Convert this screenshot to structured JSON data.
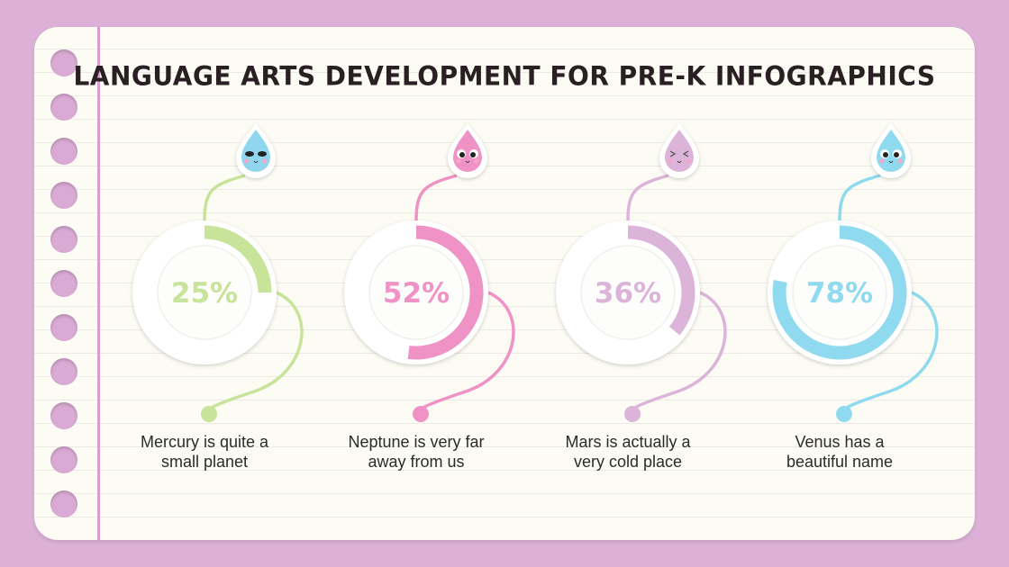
{
  "title": "LANGUAGE ARTS DEVELOPMENT FOR PRE-K INFOGRAPHICS",
  "items": [
    {
      "value": 25,
      "label": "25%",
      "caption_line1": "Mercury is quite a",
      "caption_line2": "small planet",
      "color": "#c8e49b",
      "drop_color": "#8fd6ee",
      "face": "sleepy"
    },
    {
      "value": 52,
      "label": "52%",
      "caption_line1": "Neptune is very far",
      "caption_line2": "away from us",
      "color": "#ef93c6",
      "drop_color": "#ef93c6",
      "face": "wide-eyes"
    },
    {
      "value": 36,
      "label": "36%",
      "caption_line1": "Mars is actually a",
      "caption_line2": "very cold place",
      "color": "#dcb4da",
      "drop_color": "#dcb4da",
      "face": "squint"
    },
    {
      "value": 78,
      "label": "78%",
      "caption_line1": "Venus has a",
      "caption_line2": "beautiful name",
      "color": "#90daf0",
      "drop_color": "#90daf0",
      "face": "wide-eyes"
    }
  ],
  "colors": {
    "background": "#ddb1d7",
    "paper": "#fcfbf4",
    "margin_line": "#dd9ccd",
    "title": "#2a2023"
  }
}
